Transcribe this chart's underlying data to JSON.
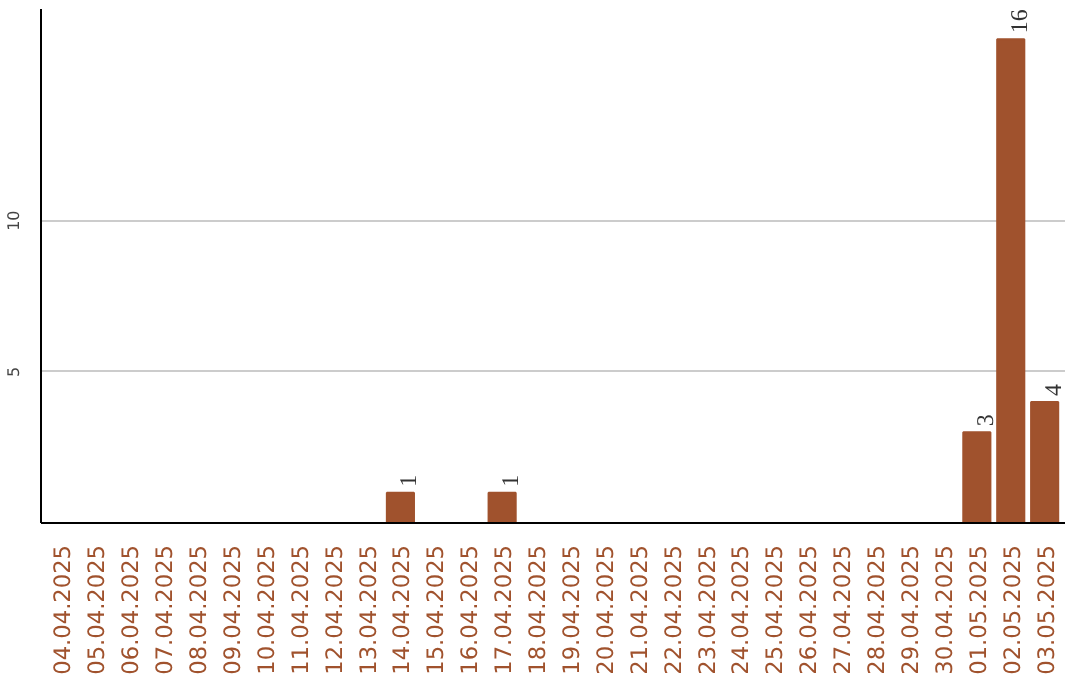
{
  "chart_data": {
    "type": "bar",
    "categories": [
      "04.04.2025",
      "05.04.2025",
      "06.04.2025",
      "07.04.2025",
      "08.04.2025",
      "09.04.2025",
      "10.04.2025",
      "11.04.2025",
      "12.04.2025",
      "13.04.2025",
      "14.04.2025",
      "15.04.2025",
      "16.04.2025",
      "17.04.2025",
      "18.04.2025",
      "19.04.2025",
      "20.04.2025",
      "21.04.2025",
      "22.04.2025",
      "23.04.2025",
      "24.04.2025",
      "25.04.2025",
      "26.04.2025",
      "27.04.2025",
      "28.04.2025",
      "29.04.2025",
      "30.04.2025",
      "01.05.2025",
      "02.05.2025",
      "03.05.2025"
    ],
    "values": [
      0,
      0,
      0,
      0,
      0,
      0,
      0,
      0,
      0,
      0,
      1,
      0,
      0,
      1,
      0,
      0,
      0,
      0,
      0,
      0,
      0,
      0,
      0,
      0,
      0,
      0,
      0,
      3,
      16,
      4
    ],
    "value_labels": [
      null,
      null,
      null,
      null,
      null,
      null,
      null,
      null,
      null,
      null,
      "1",
      null,
      null,
      "1",
      null,
      null,
      null,
      null,
      null,
      null,
      null,
      null,
      null,
      null,
      null,
      null,
      null,
      "3",
      "16",
      "4"
    ],
    "color": "#a0522d",
    "ylim": [
      0,
      17
    ],
    "yticks": [
      5,
      10
    ],
    "grid": "y"
  }
}
